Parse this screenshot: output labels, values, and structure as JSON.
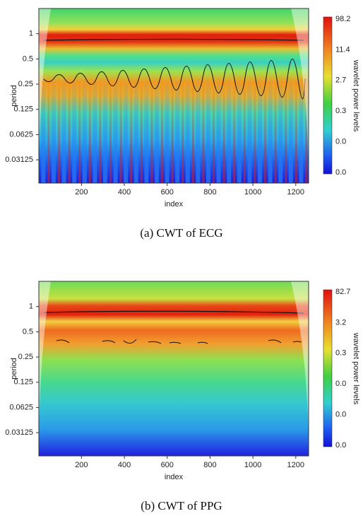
{
  "chart_data": [
    {
      "type": "heatmap",
      "caption": "(a) CWT of ECG",
      "xlabel": "index",
      "ylabel": "period",
      "colorbar_label": "wavelet power levels",
      "colorbar_ticks": [
        "98.2",
        "11.4",
        "2.7",
        "0.3",
        "0.0",
        "0.0"
      ],
      "xlim": [
        1,
        1260
      ],
      "xticks": [
        200,
        400,
        600,
        800,
        1000,
        1200
      ],
      "ylim": [
        0.0165,
        2
      ],
      "yticks": [
        1,
        0.5,
        0.25,
        0.125,
        0.0625,
        0.03125
      ],
      "log_y": true
    },
    {
      "type": "heatmap",
      "caption": "(b) CWT of PPG",
      "xlabel": "index",
      "ylabel": "period",
      "colorbar_label": "wavelet power levels",
      "colorbar_ticks": [
        "82.7",
        "3.2",
        "0.3",
        "0.0",
        "0.0",
        "0.0"
      ],
      "xlim": [
        1,
        1260
      ],
      "xticks": [
        200,
        400,
        600,
        800,
        1000,
        1200
      ],
      "ylim": [
        0.0165,
        2
      ],
      "yticks": [
        1,
        0.5,
        0.25,
        0.125,
        0.0625,
        0.03125
      ],
      "log_y": true
    }
  ]
}
